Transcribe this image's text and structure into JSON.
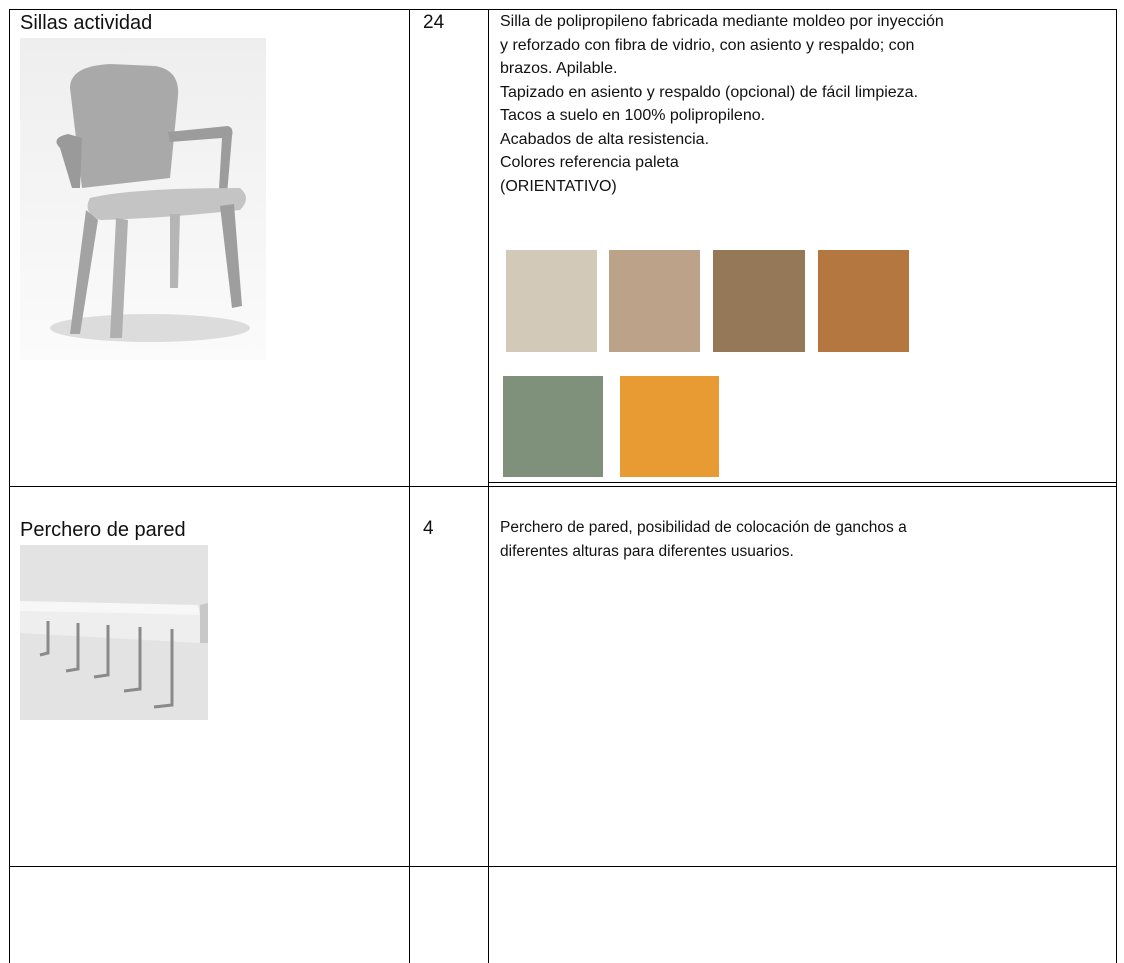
{
  "table": {
    "rows": [
      {
        "name": "Sillas actividad",
        "quantity": "24",
        "description": [
          "Silla de polipropileno fabricada mediante moldeo por inyección",
          "y reforzado con fibra de vidrio, con asiento y respaldo; con",
          "brazos. Apilable.",
          "Tapizado en asiento y respaldo (opcional) de fácil limpieza.",
          "Tacos a suelo en 100% polipropileno.",
          "Acabados de alta resistencia.",
          "Colores referencia paleta",
          "(ORIENTATIVO)"
        ]
      },
      {
        "name": "Perchero de pared",
        "quantity": "4",
        "description": [
          "Perchero de pared, posibilidad de colocación de ganchos a",
          "diferentes alturas para diferentes usuarios."
        ]
      }
    ]
  }
}
